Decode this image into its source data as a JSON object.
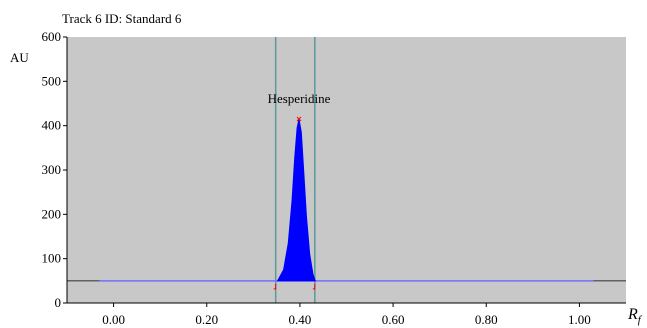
{
  "chart_data": {
    "type": "area",
    "title": "Track 6 ID: Standard 6",
    "ylabel": "AU",
    "xlabel_main": "R",
    "xlabel_sub": "f",
    "xlim": [
      -0.1,
      1.1
    ],
    "ylim": [
      0,
      600
    ],
    "x_ticks": [
      0.0,
      0.2,
      0.4,
      0.6,
      0.8,
      1.0
    ],
    "x_tick_labels": [
      "0.00",
      "0.20",
      "0.40",
      "0.60",
      "0.80",
      "1.00"
    ],
    "y_ticks": [
      0,
      100,
      200,
      300,
      400,
      500,
      600
    ],
    "y_tick_labels": [
      "0",
      "100",
      "200",
      "300",
      "400",
      "500",
      "600"
    ],
    "baseline": 50,
    "baseline_x_range": [
      -0.03,
      1.03
    ],
    "grid": false,
    "background": "#c8c8c8",
    "peak": {
      "label": "Hesperidine",
      "x": [
        0.352,
        0.365,
        0.375,
        0.383,
        0.389,
        0.394,
        0.398,
        0.403,
        0.408,
        0.414,
        0.421,
        0.428,
        0.433
      ],
      "y": [
        50,
        75,
        135,
        230,
        330,
        395,
        415,
        385,
        300,
        195,
        110,
        65,
        50
      ],
      "fill_color": "#0000ff"
    },
    "integration_boundaries": [
      0.348,
      0.432
    ],
    "colors": {
      "baseline": "#7070ff",
      "baseline_ext": "#404040",
      "boundary": "#5a9a9a",
      "marker": "#ff0000"
    }
  }
}
